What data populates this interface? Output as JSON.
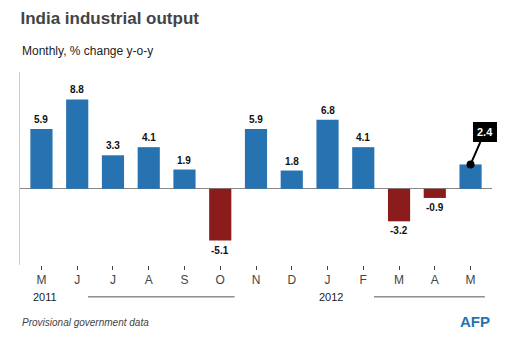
{
  "chart_data": {
    "type": "bar",
    "title": "India industrial output",
    "subtitle": "Monthly, % change y-o-y",
    "footnote": "Provisional government data",
    "source": "AFP",
    "annotations": [
      "2011",
      "2012"
    ],
    "categories": [
      "M",
      "J",
      "J",
      "A",
      "S",
      "O",
      "N",
      "D",
      "J",
      "F",
      "M",
      "A",
      "M"
    ],
    "values": [
      5.9,
      8.8,
      3.3,
      4.1,
      1.9,
      -5.1,
      5.9,
      1.8,
      6.8,
      4.1,
      -3.2,
      -0.9,
      2.4
    ],
    "colors": [
      "#2772b0",
      "#2772b0",
      "#2772b0",
      "#2772b0",
      "#2772b0",
      "#8b1c1c",
      "#2772b0",
      "#2772b0",
      "#2772b0",
      "#2772b0",
      "#8b1c1c",
      "#8b1c1c",
      "#2772b0"
    ],
    "ylim": [
      -7.5,
      11.5
    ],
    "data_labels": true,
    "tick_labels": "x",
    "grid": false
  }
}
